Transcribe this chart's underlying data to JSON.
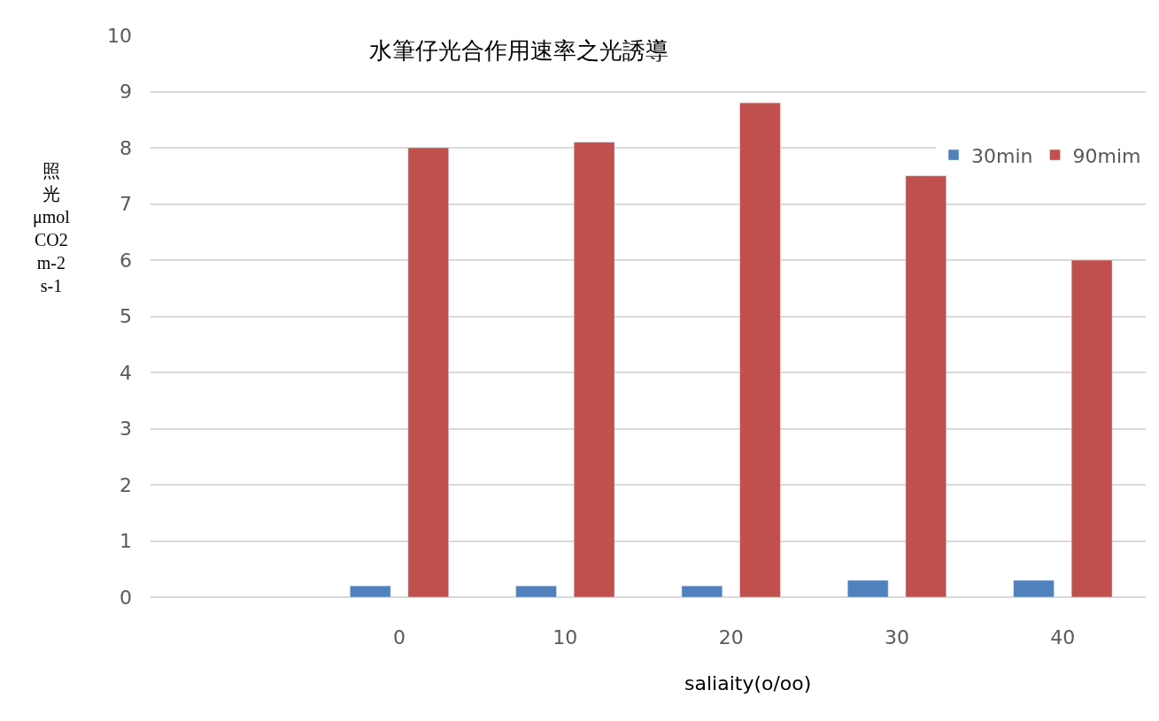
{
  "chart_data": {
    "type": "bar",
    "title": "水筆仔光合作用速率之光誘導",
    "xlabel": "saliaity(o/oo)",
    "ylabel": "照光\nμmol\nCO2\nm-2\ns-1",
    "categories": [
      null,
      "0",
      "10",
      "20",
      "30",
      "40"
    ],
    "series": [
      {
        "name": "30min",
        "color": "#4f81bd",
        "values": [
          null,
          0.2,
          0.2,
          0.2,
          0.3,
          0.3
        ]
      },
      {
        "name": "90mim",
        "color": "#c0504d",
        "values": [
          null,
          8.0,
          8.1,
          8.8,
          7.5,
          6.0
        ]
      }
    ],
    "ylim": [
      0,
      10
    ],
    "yticks": [
      0,
      1,
      2,
      3,
      4,
      5,
      6,
      7,
      8,
      9,
      10
    ],
    "grid": "y",
    "legend": "top right"
  }
}
